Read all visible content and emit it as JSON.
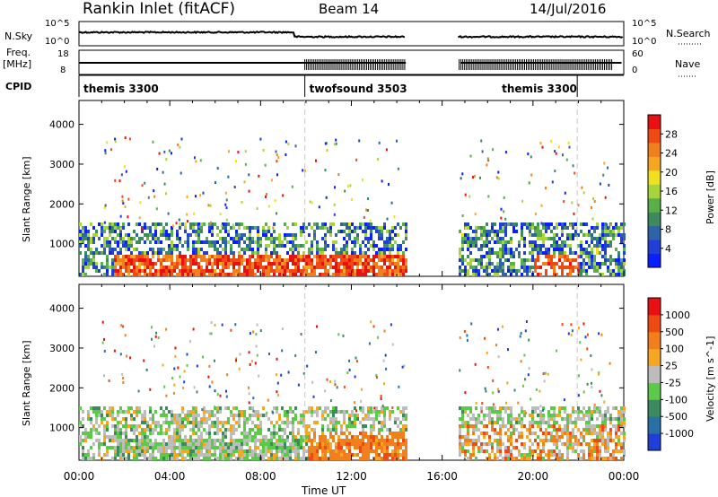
{
  "header": {
    "station": "Rankin Inlet (fitACF)",
    "beam": "Beam 14",
    "date": "14/Jul/2016"
  },
  "left_labels": {
    "nsky": "N.Sky",
    "freq": "Freq.",
    "freq_unit": "[MHz]",
    "cpid": "CPID"
  },
  "right_labels": {
    "nsearch": "N.Search",
    "nave": "Nave"
  },
  "strip_ticks": {
    "nsky_left": [
      "10^5",
      "10^0"
    ],
    "nsearch_right": [
      "10^5",
      "10^0"
    ],
    "freq_left": [
      "18",
      "8"
    ],
    "nave_right": [
      "60",
      "0"
    ]
  },
  "cpid_segments": [
    {
      "label": "themis 3300",
      "start": 0.0,
      "end": 9.95
    },
    {
      "label": "twofsound 3503",
      "start": 9.95,
      "end": 21.95
    },
    {
      "label": "themis 3300",
      "start": 21.95,
      "end": 24.0
    }
  ],
  "colors": {
    "power_scale": [
      "#0a1eff",
      "#1f3fd6",
      "#2f63a8",
      "#3c8a5e",
      "#58b04a",
      "#a8d63a",
      "#f0e020",
      "#f5a623",
      "#f07f1c",
      "#f04a14",
      "#e81010"
    ],
    "velocity_scale": [
      "#e81010",
      "#f04a14",
      "#f07f1c",
      "#f5a623",
      "#bdbdbd",
      "#5cc94a",
      "#3c8a5e",
      "#2a6fa8",
      "#1f3fd6"
    ],
    "gap_line": "#c8c8c8"
  },
  "chart_data": [
    {
      "type": "heatmap",
      "title": "Power",
      "xlabel": "",
      "ylabel": "Slant Range [km]",
      "xlim_hours": [
        0,
        24
      ],
      "ylim": [
        180,
        4600
      ],
      "yticks": [
        "1000",
        "2000",
        "3000",
        "4000"
      ],
      "colorbar": {
        "label": "Power [dB]",
        "ticks": [
          "4",
          "8",
          "12",
          "16",
          "20",
          "24",
          "28"
        ],
        "range": [
          0,
          30
        ]
      },
      "data_gaps_hours": [
        [
          14.4,
          16.7
        ]
      ],
      "features": [
        {
          "desc": "strong scatter band",
          "x_range_hours": [
            1.5,
            14.4
          ],
          "y_range_km": [
            180,
            700
          ],
          "value_db": 28
        },
        {
          "desc": "moderate scatter",
          "x_range_hours": [
            0.0,
            14.4
          ],
          "y_range_km": [
            700,
            1350
          ],
          "value_db": 8
        },
        {
          "desc": "moderate scatter",
          "x_range_hours": [
            16.7,
            23.6
          ],
          "y_range_km": [
            180,
            1500
          ],
          "value_db": 12
        }
      ]
    },
    {
      "type": "heatmap",
      "title": "Velocity",
      "xlabel": "Time UT",
      "ylabel": "Slant Range [km]",
      "xlim_hours": [
        0,
        24
      ],
      "ylim": [
        180,
        4600
      ],
      "yticks": [
        "1000",
        "2000",
        "3000",
        "4000"
      ],
      "xticks": [
        "00:00",
        "04:00",
        "08:00",
        "12:00",
        "16:00",
        "20:00",
        "00:00"
      ],
      "colorbar": {
        "label": "Velocity [m s^-1]",
        "ticks": [
          "1000",
          "500",
          "100",
          "25",
          "-25",
          "-100",
          "-500",
          "-1000"
        ],
        "range": [
          -1000,
          1000
        ]
      },
      "data_gaps_hours": [
        [
          14.4,
          16.7
        ]
      ]
    }
  ]
}
